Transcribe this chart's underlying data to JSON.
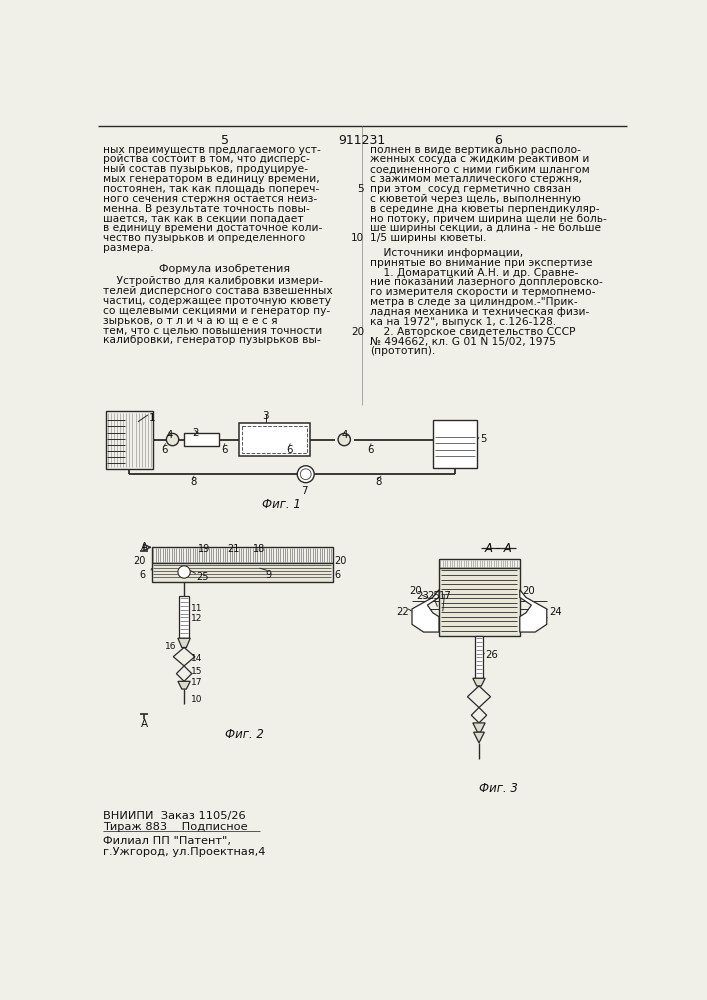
{
  "bg_color": "#f0efe8",
  "title_number": "911231",
  "col_left_number": "5",
  "col_right_number": "6",
  "left_text_lines": [
    "ных преимуществ предлагаемого уст-",
    "ройства состоит в том, что дисперс-",
    "ный состав пузырьков, продуцируе-",
    "мых генератором в единицу времени,",
    "постоянен, так как площадь попереч-",
    "ного сечения стержня остается неиз-",
    "менна. В результате точность повы-",
    "шается, так как в секции попадает",
    "в единицу времени достаточное коли-",
    "чество пузырьков и определенного",
    "размера."
  ],
  "formula_title": "Формула изобретения",
  "formula_text_lines": [
    "    Устройство для калибровки измери-",
    "телей дисперсного состава взвешенных",
    "частиц, содержащее проточную кювету",
    "со щелевыми секциями и генератор пу-",
    "зырьков, о т л и ч а ю щ е е с я",
    "тем, что с целью повышения точности",
    "калибровки, генератор пузырьков вы-"
  ],
  "right_text_lines": [
    "полнен в виде вертикально располо-",
    "женных сосуда с жидким реактивом и",
    "соединенного с ними гибким шлангом",
    "с зажимом металлического стержня,",
    "при этом  сосуд герметично связан",
    "с кюветой через щель, выполненную",
    "в середине дна кюветы перпендикуляр-",
    "но потоку, причем ширина щели не боль-",
    "ше ширины секции, а длина - не больше",
    "1/5 ширины кюветы."
  ],
  "sources_title": "    Источники информации,",
  "sources_subtitle": "принятые во внимание при экспертизе",
  "source_lines": [
    "    1. Домаратцкий А.Н. и др. Сравне-",
    "ние показаний лазерного допплеровско-",
    "го измерителя скорости и термопнемо-",
    "метра в следе за цилиндром.-\"Прик-",
    "ладная механика и техническая физи-",
    "ка на 1972\", выпуск 1, с.126-128.",
    "    2. Авторское свидетельство СССР",
    "№ 494662, кл. G 01 N 15/02, 1975",
    "(прототип)."
  ],
  "fig1_label": "Фиг. 1",
  "fig2_label": "Фиг. 2",
  "fig3_label": "Фиг. 3",
  "aa_label": "А - А",
  "bottom_lines": [
    "ВНИИПИ  Заказ 1105/26",
    "Тираж 883    Подписное",
    "Филиал ПП \"Патент\",",
    "г.Ужгород, ул.Проектная,4"
  ]
}
